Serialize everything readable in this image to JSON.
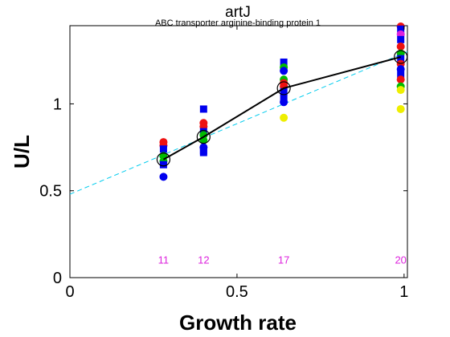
{
  "chart_data": {
    "type": "scatter",
    "title": "artJ",
    "subtitle": "ABC transporter arginine-binding protein 1",
    "xlabel": "Growth rate",
    "ylabel": "U/L",
    "xlim": [
      0,
      1.01
    ],
    "ylim": [
      0,
      1.45
    ],
    "xticks": [
      0,
      0.5,
      1
    ],
    "xtick_labels": [
      "0",
      "0.5",
      "1"
    ],
    "yticks": [
      0,
      0.5,
      1
    ],
    "ytick_labels": [
      "0",
      "0.5",
      "1"
    ],
    "grid": false,
    "mean_line": {
      "color": "#000000",
      "points": [
        {
          "x": 0.28,
          "y": 0.68
        },
        {
          "x": 0.4,
          "y": 0.81
        },
        {
          "x": 0.64,
          "y": 1.09
        },
        {
          "x": 0.99,
          "y": 1.27
        }
      ]
    },
    "fit_line": {
      "color": "#00ccee",
      "style": "dashed",
      "x": [
        0,
        1.01
      ],
      "y": [
        0.48,
        1.3
      ]
    },
    "count_labels": {
      "color": "#dd22dd",
      "y": 0.1,
      "items": [
        {
          "x": 0.28,
          "label": "11"
        },
        {
          "x": 0.4,
          "label": "12"
        },
        {
          "x": 0.64,
          "label": "17"
        },
        {
          "x": 0.99,
          "label": "20"
        }
      ]
    },
    "points": [
      {
        "x": 0.28,
        "y": 0.78,
        "color": "#ee1111",
        "marker": "circle"
      },
      {
        "x": 0.28,
        "y": 0.76,
        "color": "#ee1111",
        "marker": "circle"
      },
      {
        "x": 0.28,
        "y": 0.74,
        "color": "#0000ee",
        "marker": "square"
      },
      {
        "x": 0.28,
        "y": 0.7,
        "color": "#00bb00",
        "marker": "circle"
      },
      {
        "x": 0.28,
        "y": 0.67,
        "color": "#00bb00",
        "marker": "circle"
      },
      {
        "x": 0.28,
        "y": 0.65,
        "color": "#0000ee",
        "marker": "square"
      },
      {
        "x": 0.28,
        "y": 0.58,
        "color": "#0000ee",
        "marker": "circle"
      },
      {
        "x": 0.4,
        "y": 0.97,
        "color": "#0000ee",
        "marker": "square"
      },
      {
        "x": 0.4,
        "y": 0.89,
        "color": "#ee1111",
        "marker": "circle"
      },
      {
        "x": 0.4,
        "y": 0.87,
        "color": "#ee1111",
        "marker": "circle"
      },
      {
        "x": 0.4,
        "y": 0.84,
        "color": "#0000ee",
        "marker": "square"
      },
      {
        "x": 0.4,
        "y": 0.82,
        "color": "#00bb00",
        "marker": "circle"
      },
      {
        "x": 0.4,
        "y": 0.79,
        "color": "#00bb00",
        "marker": "circle"
      },
      {
        "x": 0.4,
        "y": 0.75,
        "color": "#0000ee",
        "marker": "circle"
      },
      {
        "x": 0.4,
        "y": 0.73,
        "color": "#0000ee",
        "marker": "square"
      },
      {
        "x": 0.4,
        "y": 0.72,
        "color": "#0000ee",
        "marker": "square"
      },
      {
        "x": 0.64,
        "y": 1.24,
        "color": "#0000ee",
        "marker": "square"
      },
      {
        "x": 0.64,
        "y": 1.21,
        "color": "#00bb00",
        "marker": "circle"
      },
      {
        "x": 0.64,
        "y": 1.19,
        "color": "#0000ee",
        "marker": "circle"
      },
      {
        "x": 0.64,
        "y": 1.14,
        "color": "#00bb00",
        "marker": "circle"
      },
      {
        "x": 0.64,
        "y": 1.12,
        "color": "#ee1111",
        "marker": "circle"
      },
      {
        "x": 0.64,
        "y": 1.1,
        "color": "#ee1111",
        "marker": "circle"
      },
      {
        "x": 0.64,
        "y": 1.07,
        "color": "#0000ee",
        "marker": "square"
      },
      {
        "x": 0.64,
        "y": 1.04,
        "color": "#0000ee",
        "marker": "square"
      },
      {
        "x": 0.64,
        "y": 1.01,
        "color": "#0000ee",
        "marker": "circle"
      },
      {
        "x": 0.64,
        "y": 0.92,
        "color": "#eeee00",
        "marker": "circle"
      },
      {
        "x": 0.99,
        "y": 1.45,
        "color": "#ee1111",
        "marker": "circle"
      },
      {
        "x": 0.99,
        "y": 1.43,
        "color": "#0000ee",
        "marker": "square"
      },
      {
        "x": 0.99,
        "y": 1.4,
        "color": "#dd22dd",
        "marker": "circle"
      },
      {
        "x": 0.99,
        "y": 1.37,
        "color": "#0000ee",
        "marker": "square"
      },
      {
        "x": 0.99,
        "y": 1.33,
        "color": "#ee1111",
        "marker": "circle"
      },
      {
        "x": 0.99,
        "y": 1.29,
        "color": "#00bb00",
        "marker": "circle"
      },
      {
        "x": 0.99,
        "y": 1.26,
        "color": "#0000ee",
        "marker": "square"
      },
      {
        "x": 0.99,
        "y": 1.23,
        "color": "#ee1111",
        "marker": "circle"
      },
      {
        "x": 0.99,
        "y": 1.2,
        "color": "#0000ee",
        "marker": "circle"
      },
      {
        "x": 0.99,
        "y": 1.17,
        "color": "#0000ee",
        "marker": "square"
      },
      {
        "x": 0.99,
        "y": 1.14,
        "color": "#ee1111",
        "marker": "circle"
      },
      {
        "x": 0.99,
        "y": 1.1,
        "color": "#00bb00",
        "marker": "circle"
      },
      {
        "x": 0.99,
        "y": 1.08,
        "color": "#eeee00",
        "marker": "circle"
      },
      {
        "x": 0.99,
        "y": 0.97,
        "color": "#eeee00",
        "marker": "circle"
      }
    ]
  }
}
